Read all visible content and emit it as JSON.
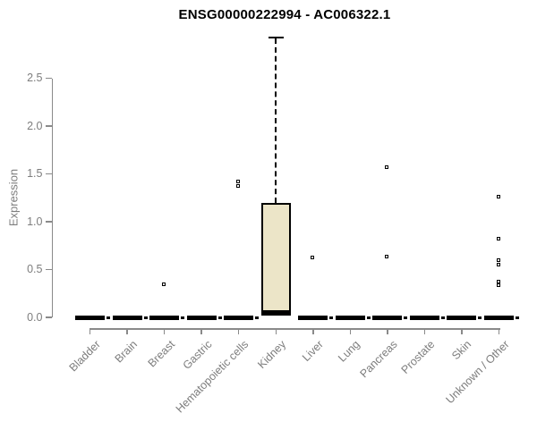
{
  "page": {
    "window_title": "ENSG00000222994 - AC006322.1"
  },
  "chart_data": {
    "type": "boxplot",
    "title": "ENSG00000222994 - AC006322.1",
    "xlabel": "",
    "ylabel": "Expression",
    "ylim": [
      0,
      2.95
    ],
    "y_ticks": [
      "0.0",
      "0.5",
      "1.0",
      "1.5",
      "2.0",
      "2.5"
    ],
    "grid": false,
    "legend": false,
    "categories": [
      "Bladder",
      "Brain",
      "Breast",
      "Gastric",
      "Hematopoietic cells",
      "Kidney",
      "Liver",
      "Lung",
      "Pancreas",
      "Prostate",
      "Skin",
      "Unknown / Other"
    ],
    "boxes": [
      {
        "category": "Bladder",
        "q1": 0,
        "median": 0,
        "q3": 0,
        "whisker_low": 0,
        "whisker_high": 0,
        "outliers": []
      },
      {
        "category": "Brain",
        "q1": 0,
        "median": 0,
        "q3": 0,
        "whisker_low": 0,
        "whisker_high": 0,
        "outliers": []
      },
      {
        "category": "Breast",
        "q1": 0,
        "median": 0,
        "q3": 0,
        "whisker_low": 0,
        "whisker_high": 0,
        "outliers": [
          0.34
        ]
      },
      {
        "category": "Gastric",
        "q1": 0,
        "median": 0,
        "q3": 0,
        "whisker_low": 0,
        "whisker_high": 0,
        "outliers": []
      },
      {
        "category": "Hematopoietic cells",
        "q1": 0,
        "median": 0,
        "q3": 0,
        "whisker_low": 0,
        "whisker_high": 0,
        "outliers": [
          1.42,
          1.37
        ]
      },
      {
        "category": "Kidney",
        "q1": 0.02,
        "median": 0.04,
        "q3": 1.2,
        "whisker_low": 0,
        "whisker_high": 2.92,
        "outliers": []
      },
      {
        "category": "Liver",
        "q1": 0,
        "median": 0,
        "q3": 0,
        "whisker_low": 0,
        "whisker_high": 0,
        "outliers": [
          0.62
        ]
      },
      {
        "category": "Lung",
        "q1": 0,
        "median": 0,
        "q3": 0,
        "whisker_low": 0,
        "whisker_high": 0,
        "outliers": []
      },
      {
        "category": "Pancreas",
        "q1": 0,
        "median": 0,
        "q3": 0,
        "whisker_low": 0,
        "whisker_high": 0,
        "outliers": [
          1.57,
          0.63
        ]
      },
      {
        "category": "Prostate",
        "q1": 0,
        "median": 0,
        "q3": 0,
        "whisker_low": 0,
        "whisker_high": 0,
        "outliers": []
      },
      {
        "category": "Skin",
        "q1": 0,
        "median": 0,
        "q3": 0,
        "whisker_low": 0,
        "whisker_high": 0,
        "outliers": []
      },
      {
        "category": "Unknown / Other",
        "q1": 0,
        "median": 0,
        "q3": 0,
        "whisker_low": 0,
        "whisker_high": 0,
        "outliers": [
          1.26,
          0.82,
          0.59,
          0.55,
          0.37,
          0.33
        ]
      }
    ],
    "colors": {
      "background": "#ffffff",
      "box_fill": "#ece5c8",
      "box_border": "#000000",
      "whisker": "#000000",
      "outlier": "#000000",
      "axis": "#8a8a8a",
      "tick_label": "#7d7d7d",
      "title": "#000000"
    }
  }
}
